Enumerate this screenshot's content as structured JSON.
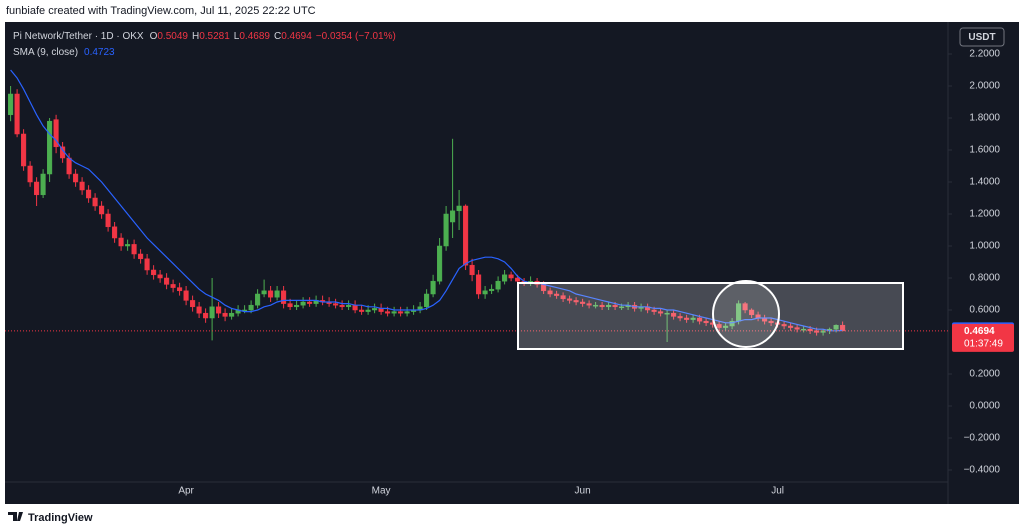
{
  "credit": "funbiafe created with TradingView.com, Jul 11, 2025 22:22 UTC",
  "footer": "TradingView",
  "chart_data": {
    "type": "candlestick",
    "symbol": "Pi Network/Tether · 1D · OKX",
    "ohlc_labels": [
      "O",
      "H",
      "L",
      "C"
    ],
    "change": "−0.0354 (−7.01%)",
    "currency": "USDT",
    "countdown": "01:37:49",
    "up_color": "#4caf50",
    "down_color": "#f23645",
    "categories": [
      null,
      null,
      null,
      null,
      null,
      null,
      null,
      null,
      null,
      null,
      null,
      null,
      null,
      null,
      null,
      null,
      null,
      null,
      null,
      null,
      null,
      null,
      null,
      null,
      null,
      null,
      null,
      "Apr",
      null,
      null,
      null,
      null,
      null,
      null,
      null,
      null,
      null,
      null,
      null,
      null,
      null,
      null,
      null,
      null,
      null,
      null,
      null,
      null,
      null,
      null,
      null,
      null,
      null,
      null,
      null,
      null,
      null,
      "May",
      null,
      null,
      null,
      null,
      null,
      null,
      null,
      null,
      null,
      null,
      null,
      null,
      null,
      null,
      null,
      null,
      null,
      null,
      null,
      null,
      null,
      null,
      null,
      null,
      null,
      null,
      null,
      null,
      null,
      null,
      "Jun",
      null,
      null,
      null,
      null,
      null,
      null,
      null,
      null,
      null,
      null,
      null,
      null,
      null,
      null,
      null,
      null,
      null,
      null,
      null,
      null,
      null,
      null,
      null,
      null,
      null,
      null,
      null,
      null,
      null,
      "Jul",
      null,
      null,
      null,
      null,
      null,
      null,
      null,
      null,
      null,
      null
    ],
    "open": [
      1.82,
      1.95,
      1.7,
      1.5,
      1.4,
      1.32,
      1.45,
      1.79,
      1.62,
      1.55,
      1.45,
      1.4,
      1.35,
      1.3,
      1.25,
      1.2,
      1.12,
      1.05,
      1.0,
      1.01,
      0.95,
      0.92,
      0.85,
      0.82,
      0.8,
      0.76,
      0.74,
      0.72,
      0.66,
      0.62,
      0.58,
      0.55,
      0.62,
      0.58,
      0.56,
      0.58,
      0.6,
      0.6,
      0.63,
      0.7,
      0.72,
      0.68,
      0.72,
      0.64,
      0.62,
      0.63,
      0.65,
      0.64,
      0.66,
      0.65,
      0.64,
      0.63,
      0.62,
      0.63,
      0.6,
      0.59,
      0.6,
      0.61,
      0.59,
      0.58,
      0.59,
      0.58,
      0.59,
      0.6,
      0.62,
      0.7,
      0.78,
      1.0,
      1.15,
      1.22,
      1.25,
      0.88,
      0.82,
      0.7,
      0.72,
      0.73,
      0.78,
      0.82,
      0.8,
      0.78,
      0.77,
      0.78,
      0.76,
      0.72,
      0.7,
      0.69,
      0.67,
      0.66,
      0.65,
      0.64,
      0.63,
      0.63,
      0.62,
      0.63,
      0.62,
      0.62,
      0.63,
      0.61,
      0.62,
      0.6,
      0.59,
      0.58,
      0.58,
      0.56,
      0.55,
      0.54,
      0.55,
      0.53,
      0.52,
      0.51,
      0.49,
      0.5,
      0.53,
      0.64,
      0.6,
      0.57,
      0.55,
      0.53,
      0.52,
      0.51,
      0.5,
      0.49,
      0.48,
      0.48,
      0.47,
      0.46,
      0.47,
      0.48,
      0.5049
    ],
    "high": [
      2.0,
      1.98,
      1.73,
      1.53,
      1.43,
      1.48,
      1.8,
      1.82,
      1.65,
      1.58,
      1.48,
      1.43,
      1.38,
      1.33,
      1.28,
      1.23,
      1.15,
      1.08,
      1.04,
      1.04,
      0.98,
      0.95,
      0.88,
      0.85,
      0.83,
      0.79,
      0.77,
      0.75,
      0.69,
      0.65,
      0.61,
      0.8,
      0.65,
      0.61,
      0.61,
      0.63,
      0.63,
      0.66,
      0.73,
      0.79,
      0.75,
      0.75,
      0.75,
      0.67,
      0.66,
      0.68,
      0.68,
      0.69,
      0.69,
      0.68,
      0.67,
      0.66,
      0.66,
      0.66,
      0.63,
      0.63,
      0.64,
      0.64,
      0.62,
      0.62,
      0.62,
      0.62,
      0.63,
      0.65,
      0.73,
      0.82,
      1.05,
      1.25,
      1.67,
      1.35,
      1.26,
      0.92,
      0.85,
      0.75,
      0.76,
      0.81,
      0.85,
      0.84,
      0.82,
      0.8,
      0.81,
      0.8,
      0.78,
      0.74,
      0.72,
      0.71,
      0.69,
      0.68,
      0.67,
      0.66,
      0.65,
      0.65,
      0.65,
      0.65,
      0.64,
      0.65,
      0.65,
      0.64,
      0.64,
      0.62,
      0.61,
      0.6,
      0.6,
      0.58,
      0.57,
      0.57,
      0.57,
      0.55,
      0.54,
      0.53,
      0.52,
      0.55,
      0.66,
      0.65,
      0.61,
      0.59,
      0.57,
      0.55,
      0.54,
      0.53,
      0.52,
      0.51,
      0.5,
      0.5,
      0.49,
      0.48,
      0.49,
      0.51,
      0.5281
    ],
    "low": [
      1.78,
      1.68,
      1.47,
      1.37,
      1.25,
      1.3,
      1.4,
      1.58,
      1.52,
      1.42,
      1.37,
      1.32,
      1.27,
      1.22,
      1.17,
      1.09,
      1.02,
      0.97,
      0.97,
      0.92,
      0.89,
      0.82,
      0.79,
      0.77,
      0.73,
      0.71,
      0.69,
      0.63,
      0.59,
      0.55,
      0.52,
      0.41,
      0.55,
      0.53,
      0.54,
      0.56,
      0.58,
      0.58,
      0.61,
      0.68,
      0.65,
      0.66,
      0.61,
      0.6,
      0.6,
      0.61,
      0.62,
      0.62,
      0.63,
      0.62,
      0.61,
      0.6,
      0.6,
      0.58,
      0.57,
      0.57,
      0.58,
      0.57,
      0.56,
      0.56,
      0.56,
      0.56,
      0.57,
      0.58,
      0.6,
      0.68,
      0.76,
      0.97,
      1.05,
      1.1,
      0.85,
      0.78,
      0.67,
      0.67,
      0.7,
      0.71,
      0.76,
      0.78,
      0.76,
      0.75,
      0.75,
      0.74,
      0.7,
      0.68,
      0.67,
      0.65,
      0.64,
      0.63,
      0.62,
      0.61,
      0.61,
      0.6,
      0.6,
      0.6,
      0.6,
      0.6,
      0.59,
      0.59,
      0.58,
      0.57,
      0.56,
      0.4,
      0.54,
      0.53,
      0.52,
      0.52,
      0.51,
      0.5,
      0.49,
      0.47,
      0.47,
      0.48,
      0.51,
      0.58,
      0.55,
      0.53,
      0.51,
      0.5,
      0.49,
      0.48,
      0.47,
      0.46,
      0.46,
      0.45,
      0.44,
      0.44,
      0.45,
      0.46,
      0.4689
    ],
    "close": [
      1.95,
      1.7,
      1.5,
      1.4,
      1.32,
      1.45,
      1.78,
      1.62,
      1.55,
      1.45,
      1.4,
      1.35,
      1.3,
      1.25,
      1.2,
      1.12,
      1.05,
      1.0,
      1.01,
      0.95,
      0.92,
      0.85,
      0.82,
      0.8,
      0.76,
      0.74,
      0.72,
      0.66,
      0.62,
      0.58,
      0.55,
      0.62,
      0.58,
      0.56,
      0.58,
      0.6,
      0.6,
      0.63,
      0.7,
      0.72,
      0.68,
      0.72,
      0.64,
      0.62,
      0.63,
      0.65,
      0.64,
      0.66,
      0.65,
      0.64,
      0.63,
      0.62,
      0.63,
      0.6,
      0.59,
      0.6,
      0.61,
      0.59,
      0.58,
      0.59,
      0.58,
      0.59,
      0.6,
      0.62,
      0.7,
      0.78,
      1.0,
      1.2,
      1.22,
      1.25,
      0.88,
      0.82,
      0.7,
      0.72,
      0.73,
      0.78,
      0.82,
      0.8,
      0.78,
      0.77,
      0.78,
      0.76,
      0.72,
      0.7,
      0.69,
      0.67,
      0.66,
      0.65,
      0.64,
      0.63,
      0.63,
      0.62,
      0.63,
      0.62,
      0.62,
      0.63,
      0.61,
      0.62,
      0.6,
      0.59,
      0.58,
      0.58,
      0.56,
      0.55,
      0.54,
      0.55,
      0.53,
      0.52,
      0.51,
      0.49,
      0.5,
      0.53,
      0.64,
      0.6,
      0.57,
      0.55,
      0.53,
      0.52,
      0.51,
      0.5,
      0.49,
      0.48,
      0.48,
      0.47,
      0.46,
      0.47,
      0.48,
      0.5048,
      0.4694
    ],
    "series": [
      {
        "name": "SMA (9, close)",
        "color": "#2962ff",
        "values": [
          2.1,
          2.05,
          1.98,
          1.9,
          1.82,
          1.75,
          1.7,
          1.66,
          1.6,
          1.55,
          1.52,
          1.5,
          1.48,
          1.44,
          1.4,
          1.35,
          1.3,
          1.25,
          1.2,
          1.15,
          1.1,
          1.05,
          1.01,
          0.97,
          0.93,
          0.89,
          0.85,
          0.81,
          0.77,
          0.73,
          0.7,
          0.68,
          0.66,
          0.63,
          0.61,
          0.6,
          0.59,
          0.59,
          0.6,
          0.62,
          0.63,
          0.65,
          0.66,
          0.66,
          0.66,
          0.66,
          0.66,
          0.66,
          0.65,
          0.65,
          0.65,
          0.64,
          0.64,
          0.63,
          0.63,
          0.62,
          0.62,
          0.61,
          0.61,
          0.6,
          0.6,
          0.6,
          0.6,
          0.6,
          0.61,
          0.63,
          0.66,
          0.72,
          0.79,
          0.86,
          0.89,
          0.91,
          0.92,
          0.93,
          0.93,
          0.92,
          0.9,
          0.86,
          0.81,
          0.78,
          0.77,
          0.77,
          0.76,
          0.75,
          0.74,
          0.73,
          0.72,
          0.7,
          0.69,
          0.68,
          0.67,
          0.66,
          0.65,
          0.64,
          0.63,
          0.63,
          0.62,
          0.62,
          0.62,
          0.61,
          0.61,
          0.6,
          0.6,
          0.59,
          0.58,
          0.57,
          0.56,
          0.55,
          0.54,
          0.53,
          0.52,
          0.52,
          0.53,
          0.54,
          0.54,
          0.55,
          0.55,
          0.55,
          0.54,
          0.53,
          0.52,
          0.51,
          0.5,
          0.49,
          0.48,
          0.48,
          0.47,
          0.47,
          0.4723
        ]
      }
    ],
    "ylim": [
      -0.475,
      2.375
    ],
    "yticks": [
      {
        "value": 2.2,
        "label": "2.2000"
      },
      {
        "value": 2.0,
        "label": "2.0000"
      },
      {
        "value": 1.8,
        "label": "1.8000"
      },
      {
        "value": 1.6,
        "label": "1.6000"
      },
      {
        "value": 1.4,
        "label": "1.4000"
      },
      {
        "value": 1.2,
        "label": "1.2000"
      },
      {
        "value": 1.0,
        "label": "1.0000"
      },
      {
        "value": 0.8,
        "label": "0.8000"
      },
      {
        "value": 0.6,
        "label": "0.6000"
      },
      {
        "value": 0.2,
        "label": "0.2000"
      },
      {
        "value": 0,
        "label": "0.0000"
      },
      {
        "value": -0.2,
        "label": "−0.2000"
      },
      {
        "value": -0.4,
        "label": "−0.4000"
      }
    ],
    "grid": false
  }
}
